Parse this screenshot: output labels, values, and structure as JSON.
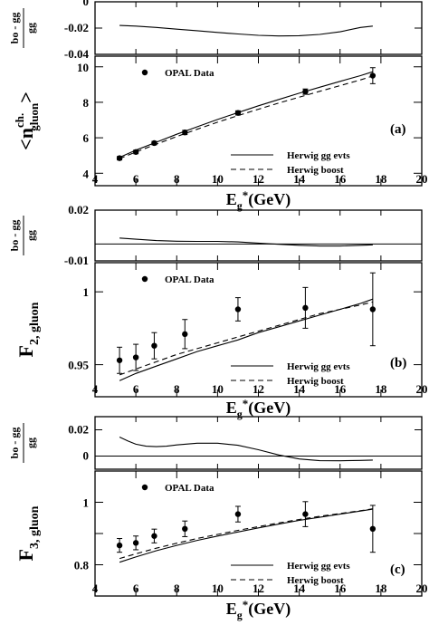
{
  "figure": {
    "x_axis_label": "E_g*(GeV)",
    "ratio_label_numerator": "bo - gg",
    "ratio_label_denominator": "gg",
    "legend": {
      "data": "OPAL Data",
      "solid": "Herwig gg evts",
      "dashed": "Herwig boost"
    }
  },
  "chart_data": [
    {
      "type": "line",
      "panel": "(a)",
      "ylabel": "<n_gluon^ch.>",
      "xlim": [
        4,
        20
      ],
      "xticks": [
        4,
        6,
        8,
        10,
        12,
        14,
        16,
        18,
        20
      ],
      "ratio_plot": {
        "ylim": [
          -0.04,
          0.0
        ],
        "yticks": [
          -0.04,
          -0.02,
          0
        ],
        "ytick_labels": [
          "-0.04",
          "-0.02",
          "0"
        ],
        "curve": {
          "x": [
            5.2,
            6,
            7,
            8,
            9,
            10,
            11,
            12,
            13,
            14,
            15,
            16,
            17,
            17.6
          ],
          "y": [
            -0.018,
            -0.0185,
            -0.0195,
            -0.0208,
            -0.022,
            -0.0233,
            -0.0245,
            -0.0255,
            -0.026,
            -0.0258,
            -0.0248,
            -0.0228,
            -0.0195,
            -0.0185
          ]
        }
      },
      "main_plot": {
        "ylim": [
          3.3,
          10.6
        ],
        "yticks": [
          4,
          6,
          8,
          10
        ],
        "ytick_labels": [
          "4",
          "6",
          "8",
          "10"
        ],
        "data_points": {
          "x": [
            5.2,
            6.0,
            6.9,
            8.4,
            11.0,
            14.3,
            17.6
          ],
          "y": [
            4.85,
            5.2,
            5.7,
            6.3,
            7.4,
            8.6,
            9.5
          ],
          "yerr": [
            0.1,
            0.1,
            0.1,
            0.12,
            0.12,
            0.15,
            0.45
          ]
        },
        "series": [
          {
            "name": "Herwig gg evts",
            "style": "solid",
            "x": [
              5.2,
              6,
              7,
              8,
              9,
              10,
              11,
              12,
              13,
              14,
              15,
              16,
              17,
              17.6
            ],
            "y": [
              4.9,
              5.3,
              5.75,
              6.2,
              6.62,
              7.03,
              7.42,
              7.8,
              8.16,
              8.51,
              8.85,
              9.18,
              9.5,
              9.72
            ]
          },
          {
            "name": "Herwig boost",
            "style": "dashed",
            "x": [
              5.2,
              6,
              7,
              8,
              9,
              10,
              11,
              12,
              13,
              14,
              15,
              16,
              17,
              17.6
            ],
            "y": [
              4.82,
              5.2,
              5.64,
              6.07,
              6.48,
              6.88,
              7.25,
              7.61,
              7.96,
              8.29,
              8.62,
              8.94,
              9.26,
              9.48
            ]
          }
        ]
      }
    },
    {
      "type": "line",
      "panel": "(b)",
      "ylabel": "F_2, gluon",
      "xlim": [
        4,
        20
      ],
      "xticks": [
        4,
        6,
        8,
        10,
        12,
        14,
        16,
        18,
        20
      ],
      "ratio_plot": {
        "ylim": [
          -0.01,
          0.02
        ],
        "yticks": [
          -0.01,
          0.02
        ],
        "ytick_labels": [
          "-0.01",
          "0.02"
        ],
        "zero_line": 0.0,
        "curve": {
          "x": [
            5.2,
            6,
            7,
            8,
            9,
            10,
            11,
            12,
            13,
            14,
            15,
            16,
            17,
            17.6
          ],
          "y": [
            0.0035,
            0.0028,
            0.002,
            0.0016,
            0.0015,
            0.0015,
            0.0012,
            0.0005,
            -0.0002,
            -0.0008,
            -0.0012,
            -0.0012,
            -0.0008,
            -0.0005
          ]
        }
      },
      "main_plot": {
        "ylim": [
          0.928,
          1.02
        ],
        "yticks": [
          0.95,
          1.0
        ],
        "ytick_labels": [
          "0.95",
          "1"
        ],
        "data_points": {
          "x": [
            5.2,
            6.0,
            6.9,
            8.4,
            11.0,
            14.3,
            17.6
          ],
          "y": [
            0.953,
            0.955,
            0.963,
            0.971,
            0.988,
            0.989,
            0.988
          ],
          "yerr": [
            0.009,
            0.009,
            0.009,
            0.01,
            0.008,
            0.014,
            0.025
          ]
        },
        "series": [
          {
            "name": "Herwig gg evts",
            "style": "solid",
            "x": [
              5.2,
              6,
              7,
              8,
              9,
              10,
              11,
              12,
              13,
              14,
              15,
              16,
              17,
              17.6
            ],
            "y": [
              0.939,
              0.944,
              0.949,
              0.954,
              0.959,
              0.963,
              0.967,
              0.972,
              0.976,
              0.98,
              0.984,
              0.988,
              0.992,
              0.995
            ]
          },
          {
            "name": "Herwig boost",
            "style": "dashed",
            "x": [
              5.2,
              6,
              7,
              8,
              9,
              10,
              11,
              12,
              13,
              14,
              15,
              16,
              17,
              17.6
            ],
            "y": [
              0.943,
              0.947,
              0.952,
              0.957,
              0.961,
              0.965,
              0.969,
              0.973,
              0.977,
              0.981,
              0.985,
              0.988,
              0.991,
              0.993
            ]
          }
        ]
      }
    },
    {
      "type": "line",
      "panel": "(c)",
      "ylabel": "F_3, gluon",
      "xlim": [
        4,
        20
      ],
      "xticks": [
        4,
        6,
        8,
        10,
        12,
        14,
        16,
        18,
        20
      ],
      "ratio_plot": {
        "ylim": [
          -0.01,
          0.03
        ],
        "yticks": [
          0.0,
          0.02
        ],
        "ytick_labels": [
          "0",
          "0.02"
        ],
        "zero_line": 0.0,
        "curve": {
          "x": [
            5.2,
            5.6,
            6,
            6.5,
            7,
            7.5,
            8,
            9,
            10,
            11,
            12,
            13,
            14,
            15,
            16,
            17,
            17.6
          ],
          "y": [
            0.0145,
            0.0115,
            0.009,
            0.0075,
            0.0072,
            0.0075,
            0.0085,
            0.0098,
            0.0098,
            0.0082,
            0.0048,
            0.0008,
            -0.0022,
            -0.0035,
            -0.0036,
            -0.0033,
            -0.003
          ]
        }
      },
      "main_plot": {
        "ylim": [
          0.7,
          1.1
        ],
        "yticks": [
          0.8,
          0.9,
          1.0
        ],
        "ytick_labels": [
          "0.8",
          "",
          "1"
        ],
        "data_points": {
          "x": [
            5.2,
            6.0,
            6.9,
            8.4,
            11.0,
            14.3,
            17.6
          ],
          "y": [
            0.862,
            0.87,
            0.892,
            0.915,
            0.962,
            0.962,
            0.915
          ],
          "yerr": [
            0.022,
            0.022,
            0.022,
            0.025,
            0.025,
            0.04,
            0.075
          ]
        },
        "series": [
          {
            "name": "Herwig gg evts",
            "style": "solid",
            "x": [
              5.2,
              6,
              7,
              8,
              9,
              10,
              11,
              12,
              13,
              14,
              15,
              16,
              17,
              17.6
            ],
            "y": [
              0.808,
              0.825,
              0.845,
              0.862,
              0.878,
              0.892,
              0.905,
              0.918,
              0.93,
              0.942,
              0.952,
              0.962,
              0.972,
              0.978
            ]
          },
          {
            "name": "Herwig boost",
            "style": "dashed",
            "x": [
              5.2,
              6,
              7,
              8,
              9,
              10,
              11,
              12,
              13,
              14,
              15,
              16,
              17,
              17.6
            ],
            "y": [
              0.82,
              0.835,
              0.853,
              0.869,
              0.884,
              0.897,
              0.91,
              0.922,
              0.934,
              0.945,
              0.955,
              0.964,
              0.973,
              0.979
            ]
          }
        ]
      }
    }
  ]
}
